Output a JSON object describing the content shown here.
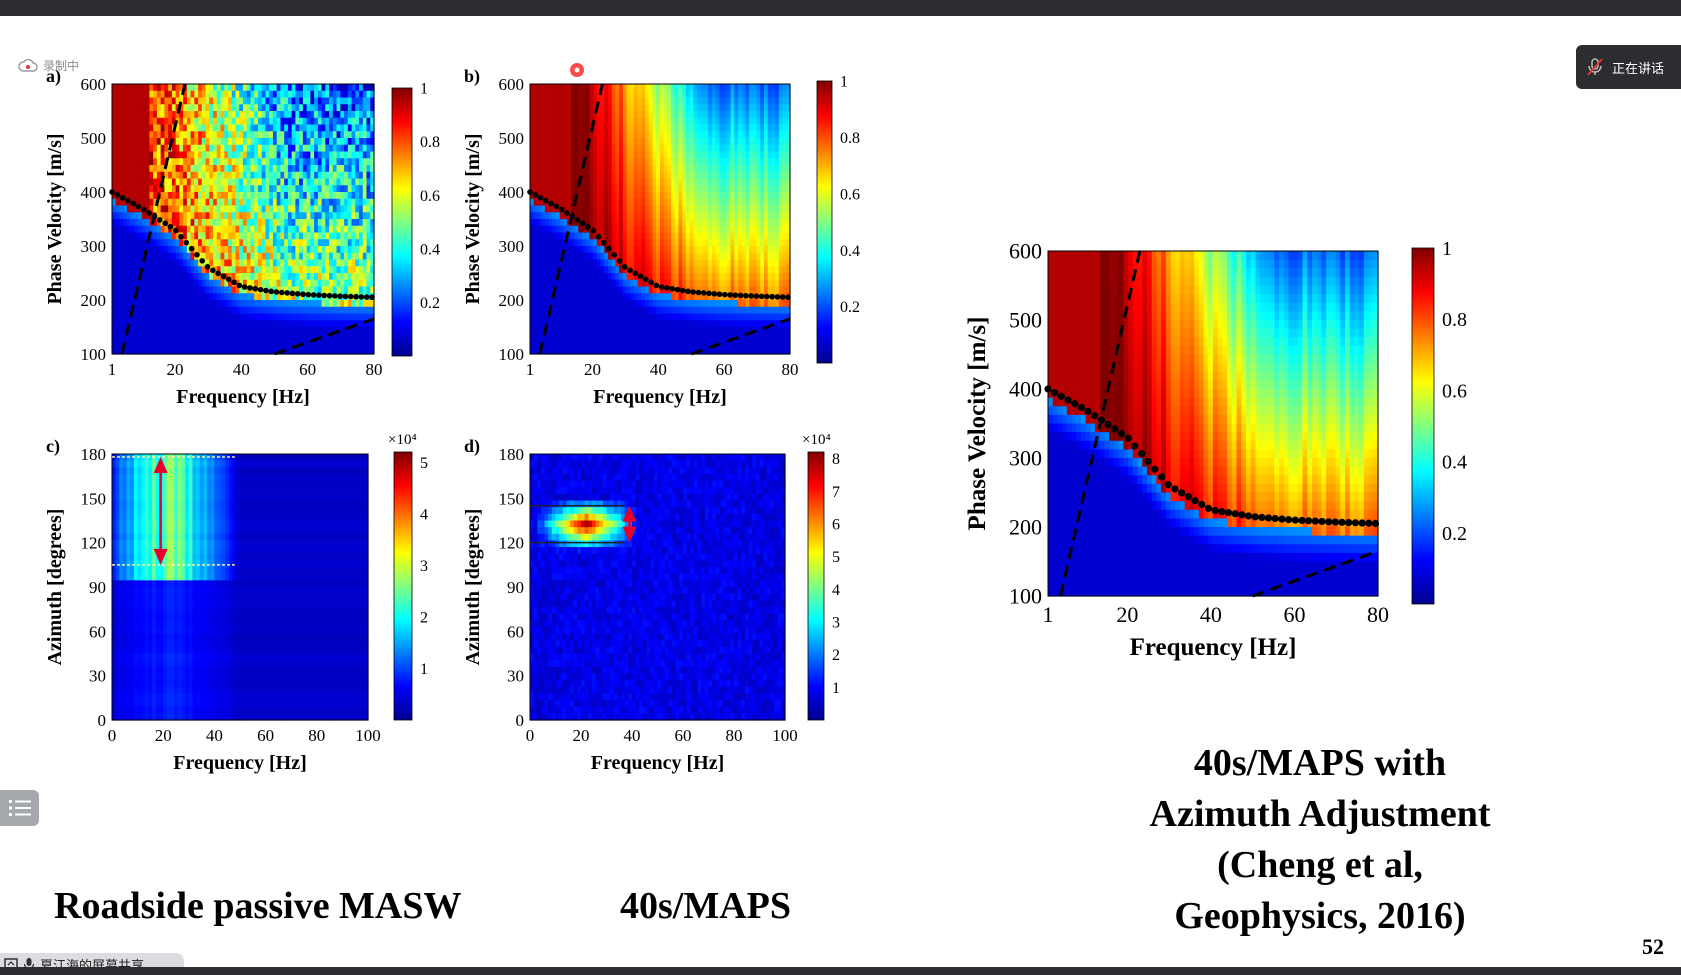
{
  "recording": {
    "label": "录制中"
  },
  "speaker": {
    "label": "正在讲话"
  },
  "share": {
    "label": "夏江海的屏幕共享"
  },
  "slide": {
    "page_number": "52",
    "caption_left": "Roadside passive MASW",
    "caption_mid": "40s/MAPS",
    "caption_right_lines": [
      "40s/MAPS with",
      "Azimuth Adjustment",
      "(Cheng et al,",
      "Geophysics, 2016)"
    ]
  },
  "colors": {
    "jet_dark": "#00008f",
    "jet_blue": "#0050ff",
    "jet_cyan": "#00e0ff",
    "jet_yellow": "#ffe000",
    "jet_red": "#e00000",
    "jet_darkred": "#800000"
  },
  "chart_data": [
    {
      "id": "a",
      "panel_label": "a)",
      "type": "heatmap",
      "xlabel": "Frequency  [Hz]",
      "ylabel": "Phase Velocity  [m/s]",
      "xlim": [
        1,
        80
      ],
      "ylim": [
        100,
        600
      ],
      "xticks": [
        "1",
        "20",
        "40",
        "60",
        "80"
      ],
      "yticks": [
        "100",
        "200",
        "300",
        "400",
        "500",
        "600"
      ],
      "colorbar_ticks": [
        "0.2",
        "0.4",
        "0.6",
        "0.8",
        "1"
      ],
      "colorbar_range": [
        0,
        1
      ],
      "picked_dispersion": {
        "x": [
          1,
          10,
          20,
          30,
          40,
          50,
          60,
          70,
          80
        ],
        "y": [
          400,
          370,
          330,
          260,
          225,
          215,
          210,
          207,
          205
        ]
      }
    },
    {
      "id": "b",
      "panel_label": "b)",
      "type": "heatmap",
      "xlabel": "Frequency  [Hz]",
      "ylabel": "Phase Velocity  [m/s]",
      "xlim": [
        1,
        80
      ],
      "ylim": [
        100,
        600
      ],
      "xticks": [
        "1",
        "20",
        "40",
        "60",
        "80"
      ],
      "yticks": [
        "100",
        "200",
        "300",
        "400",
        "500",
        "600"
      ],
      "colorbar_ticks": [
        "0.2",
        "0.4",
        "0.6",
        "0.8",
        "1"
      ],
      "colorbar_range": [
        0,
        1
      ],
      "picked_dispersion": {
        "x": [
          1,
          10,
          20,
          30,
          40,
          50,
          60,
          70,
          80
        ],
        "y": [
          400,
          370,
          330,
          260,
          225,
          215,
          210,
          207,
          205
        ]
      }
    },
    {
      "id": "c",
      "panel_label": "c)",
      "type": "heatmap",
      "xlabel": "Frequency  [Hz]",
      "ylabel": "Azimuth  [degrees]",
      "xlim": [
        0,
        100
      ],
      "ylim": [
        0,
        180
      ],
      "xticks": [
        "0",
        "20",
        "40",
        "60",
        "80",
        "100"
      ],
      "yticks": [
        "0",
        "30",
        "60",
        "90",
        "120",
        "150",
        "180"
      ],
      "colorbar_ticks": [
        "1",
        "2",
        "3",
        "4",
        "5"
      ],
      "colorbar_multiplier": "×10⁴",
      "azimuth_range_marked": [
        105,
        178
      ]
    },
    {
      "id": "d",
      "panel_label": "d)",
      "type": "heatmap",
      "xlabel": "Frequency  [Hz]",
      "ylabel": "Azimuth  [degrees]",
      "xlim": [
        0,
        100
      ],
      "ylim": [
        0,
        180
      ],
      "xticks": [
        "0",
        "20",
        "40",
        "60",
        "80",
        "100"
      ],
      "yticks": [
        "0",
        "30",
        "60",
        "90",
        "120",
        "150",
        "180"
      ],
      "colorbar_ticks": [
        "1",
        "2",
        "3",
        "4",
        "5",
        "6",
        "7",
        "8"
      ],
      "colorbar_multiplier": "×10⁴",
      "azimuth_range_marked": [
        120,
        145
      ]
    },
    {
      "id": "e",
      "panel_label": "",
      "type": "heatmap",
      "xlabel": "Frequency  [Hz]",
      "ylabel": "Phase Velocity  [m/s]",
      "xlim": [
        1,
        80
      ],
      "ylim": [
        100,
        600
      ],
      "xticks": [
        "1",
        "20",
        "40",
        "60",
        "80"
      ],
      "yticks": [
        "100",
        "200",
        "300",
        "400",
        "500",
        "600"
      ],
      "colorbar_ticks": [
        "0.2",
        "0.4",
        "0.6",
        "0.8",
        "1"
      ],
      "colorbar_range": [
        0,
        1
      ],
      "picked_dispersion": {
        "x": [
          1,
          10,
          20,
          30,
          40,
          50,
          60,
          70,
          80
        ],
        "y": [
          400,
          370,
          330,
          260,
          225,
          215,
          210,
          207,
          205
        ]
      }
    }
  ]
}
